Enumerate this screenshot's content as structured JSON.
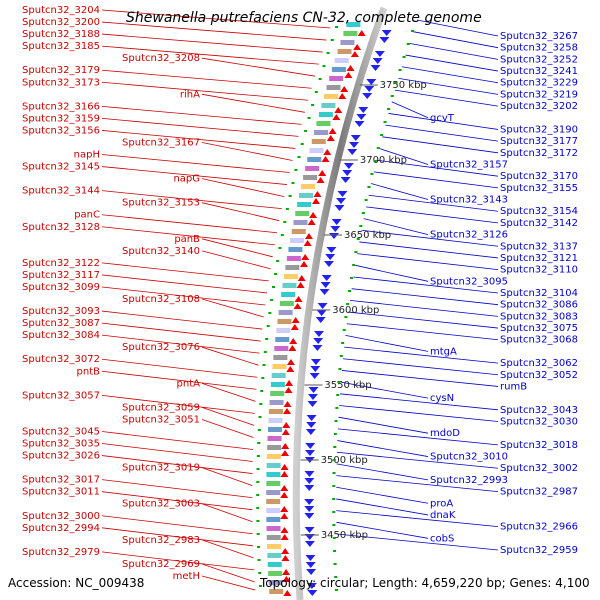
{
  "title": "Shewanella putrefaciens CN-32, complete genome",
  "accession": "Accession: NC_009438",
  "topology": "Topology: circular; Length: 4,659,220 bp; Genes: 4,100",
  "colors": {
    "forward_label": "#cc0000",
    "reverse_label": "#0000cc",
    "backbone": "#888888",
    "ticks": "#00aa00"
  },
  "position_ticks": [
    "3750 kbp",
    "3700 kbp",
    "3650 kbp",
    "3600 kbp",
    "3550 kbp",
    "3500 kbp",
    "3450 kbp"
  ],
  "left_labels": [
    "Sputcn32_3204",
    "Sputcn32_3200",
    "Sputcn32_3188",
    "Sputcn32_3185",
    "Sputcn32_3208",
    "Sputcn32_3179",
    "Sputcn32_3173",
    "rihA",
    "Sputcn32_3166",
    "Sputcn32_3159",
    "Sputcn32_3156",
    "Sputcn32_3167",
    "napH",
    "Sputcn32_3145",
    "napG",
    "Sputcn32_3144",
    "Sputcn32_3153",
    "panC",
    "Sputcn32_3128",
    "panB",
    "Sputcn32_3140",
    "Sputcn32_3122",
    "Sputcn32_3117",
    "Sputcn32_3099",
    "Sputcn32_3108",
    "Sputcn32_3093",
    "Sputcn32_3087",
    "Sputcn32_3084",
    "Sputcn32_3076",
    "Sputcn32_3072",
    "pntB",
    "pntA",
    "Sputcn32_3057",
    "Sputcn32_3059",
    "Sputcn32_3051",
    "Sputcn32_3045",
    "Sputcn32_3035",
    "Sputcn32_3026",
    "Sputcn32_3019",
    "Sputcn32_3017",
    "Sputcn32_3011",
    "Sputcn32_3003",
    "Sputcn32_3000",
    "Sputcn32_2994",
    "Sputcn32_2983",
    "Sputcn32_2979",
    "Sputcn32_2969",
    "metH"
  ],
  "right_labels": [
    "Sputcn32_3267",
    "Sputcn32_3258",
    "Sputcn32_3252",
    "Sputcn32_3241",
    "Sputcn32_3229",
    "Sputcn32_3219",
    "Sputcn32_3202",
    "gcvT",
    "Sputcn32_3190",
    "Sputcn32_3177",
    "Sputcn32_3172",
    "Sputcn32_3157",
    "Sputcn32_3170",
    "Sputcn32_3155",
    "Sputcn32_3143",
    "Sputcn32_3154",
    "Sputcn32_3142",
    "Sputcn32_3126",
    "Sputcn32_3137",
    "Sputcn32_3121",
    "Sputcn32_3110",
    "Sputcn32_3095",
    "Sputcn32_3104",
    "Sputcn32_3086",
    "Sputcn32_3083",
    "Sputcn32_3075",
    "Sputcn32_3068",
    "mtgA",
    "Sputcn32_3062",
    "Sputcn32_3052",
    "rumB",
    "cysN",
    "Sputcn32_3043",
    "Sputcn32_3030",
    "mdoD",
    "Sputcn32_3018",
    "Sputcn32_3010",
    "Sputcn32_3002",
    "Sputcn32_2993",
    "Sputcn32_2987",
    "proA",
    "dnaK",
    "Sputcn32_2966",
    "cobS",
    "Sputcn32_2959"
  ]
}
